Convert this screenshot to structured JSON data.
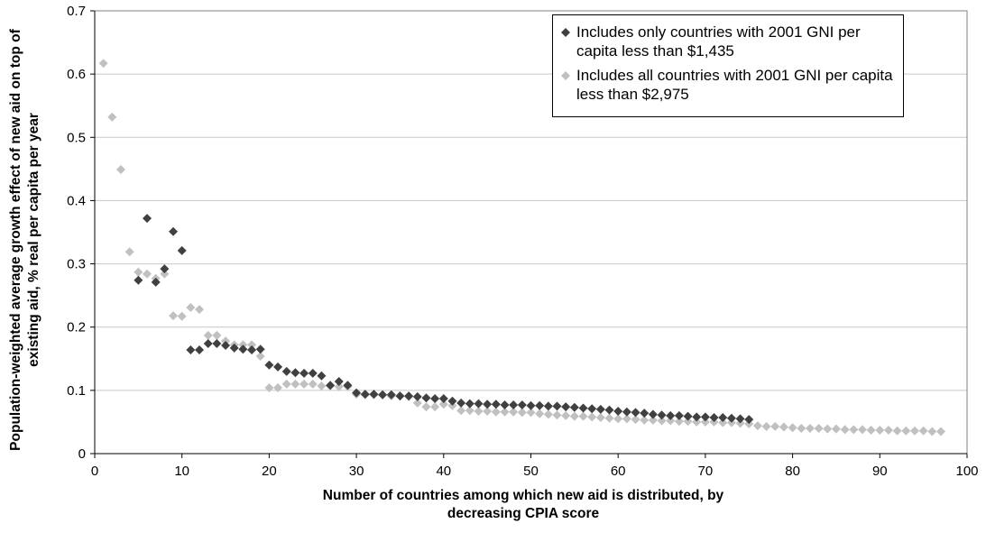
{
  "chart_data": {
    "type": "scatter",
    "y_label": "Population-weighted average growth effect of new aid on top of existing aid, % real per capita per year",
    "x_label": "Number of countries among which new aid is distributed, by decreasing CPIA score",
    "xlim": [
      0,
      100
    ],
    "xticks": [
      0,
      10,
      20,
      30,
      40,
      50,
      60,
      70,
      80,
      90,
      100
    ],
    "ylim": [
      0,
      0.7
    ],
    "yticks": [
      0,
      0.1,
      0.2,
      0.3,
      0.4,
      0.5,
      0.6,
      0.7
    ],
    "grid": true,
    "legend": "top-right",
    "series": [
      {
        "name": "Includes only countries with 2001 GNI per capita less than $1,435",
        "color": "#404040",
        "x": [
          5,
          6,
          7,
          8,
          9,
          10,
          11,
          12,
          13,
          14,
          15,
          16,
          17,
          18,
          19,
          20,
          21,
          22,
          23,
          24,
          25,
          26,
          27,
          28,
          29,
          30,
          31,
          32,
          33,
          34,
          35,
          36,
          37,
          38,
          39,
          40,
          41,
          42,
          43,
          44,
          45,
          46,
          47,
          48,
          49,
          50,
          51,
          52,
          53,
          54,
          55,
          56,
          57,
          58,
          59,
          60,
          61,
          62,
          63,
          64,
          65,
          66,
          67,
          68,
          69,
          70,
          71,
          72,
          73,
          74,
          75
        ],
        "values": [
          0.274,
          0.372,
          0.271,
          0.292,
          0.351,
          0.321,
          0.164,
          0.164,
          0.174,
          0.174,
          0.171,
          0.167,
          0.165,
          0.164,
          0.165,
          0.14,
          0.137,
          0.13,
          0.128,
          0.127,
          0.127,
          0.123,
          0.108,
          0.114,
          0.108,
          0.096,
          0.094,
          0.094,
          0.093,
          0.093,
          0.091,
          0.091,
          0.09,
          0.088,
          0.087,
          0.087,
          0.083,
          0.08,
          0.079,
          0.079,
          0.078,
          0.078,
          0.077,
          0.077,
          0.077,
          0.076,
          0.076,
          0.075,
          0.075,
          0.074,
          0.073,
          0.072,
          0.071,
          0.07,
          0.069,
          0.067,
          0.066,
          0.065,
          0.064,
          0.062,
          0.061,
          0.06,
          0.06,
          0.059,
          0.058,
          0.058,
          0.057,
          0.057,
          0.056,
          0.055,
          0.054
        ]
      },
      {
        "name": "Includes all countries with 2001 GNI per capita less than $2,975",
        "color": "#c0c0c0",
        "x": [
          1,
          2,
          3,
          4,
          5,
          6,
          7,
          8,
          9,
          10,
          11,
          12,
          13,
          14,
          15,
          16,
          17,
          18,
          19,
          20,
          21,
          22,
          23,
          24,
          25,
          26,
          27,
          28,
          29,
          30,
          31,
          32,
          33,
          34,
          35,
          36,
          37,
          38,
          39,
          40,
          41,
          42,
          43,
          44,
          45,
          46,
          47,
          48,
          49,
          50,
          51,
          52,
          53,
          54,
          55,
          56,
          57,
          58,
          59,
          60,
          61,
          62,
          63,
          64,
          65,
          66,
          67,
          68,
          69,
          70,
          71,
          72,
          73,
          74,
          75,
          76,
          77,
          78,
          79,
          80,
          81,
          82,
          83,
          84,
          85,
          86,
          87,
          88,
          89,
          90,
          91,
          92,
          93,
          94,
          95,
          96,
          97
        ],
        "values": [
          0.617,
          0.532,
          0.449,
          0.319,
          0.287,
          0.284,
          0.277,
          0.284,
          0.218,
          0.217,
          0.231,
          0.228,
          0.187,
          0.187,
          0.178,
          0.172,
          0.172,
          0.172,
          0.154,
          0.104,
          0.104,
          0.11,
          0.11,
          0.11,
          0.11,
          0.107,
          0.107,
          0.106,
          0.106,
          0.094,
          0.093,
          0.093,
          0.093,
          0.091,
          0.091,
          0.09,
          0.08,
          0.074,
          0.074,
          0.078,
          0.076,
          0.068,
          0.068,
          0.067,
          0.067,
          0.066,
          0.066,
          0.066,
          0.065,
          0.065,
          0.063,
          0.062,
          0.061,
          0.06,
          0.059,
          0.059,
          0.058,
          0.057,
          0.056,
          0.055,
          0.055,
          0.054,
          0.053,
          0.053,
          0.052,
          0.052,
          0.051,
          0.051,
          0.05,
          0.05,
          0.05,
          0.049,
          0.049,
          0.048,
          0.047,
          0.044,
          0.043,
          0.043,
          0.042,
          0.041,
          0.04,
          0.04,
          0.04,
          0.039,
          0.039,
          0.038,
          0.038,
          0.038,
          0.037,
          0.037,
          0.037,
          0.036,
          0.036,
          0.036,
          0.036,
          0.035,
          0.035
        ]
      }
    ]
  }
}
